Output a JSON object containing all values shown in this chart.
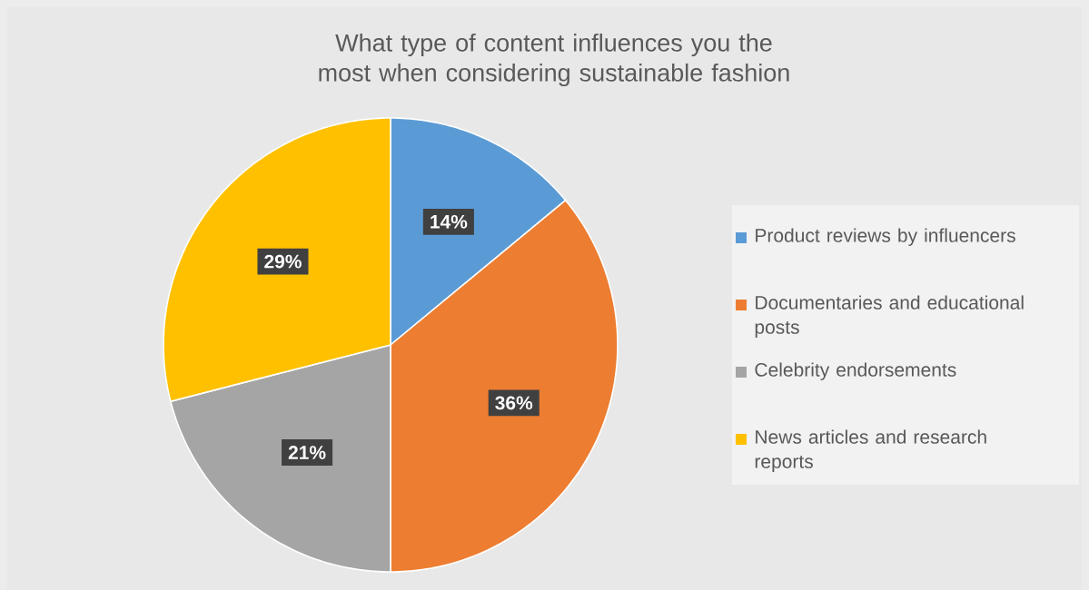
{
  "chart_data": {
    "type": "pie",
    "title": "What type of content influences you the most when considering sustainable fashion",
    "categories": [
      "Product reviews by influencers",
      "Documentaries and educational posts",
      "Celebrity endorsements",
      "News articles and research reports"
    ],
    "values": [
      14,
      36,
      21,
      29
    ],
    "colors": [
      "#5b9bd5",
      "#ed7d31",
      "#a5a5a5",
      "#ffc000"
    ],
    "value_labels": [
      "14%",
      "36%",
      "21%",
      "29%"
    ],
    "legend": "right"
  }
}
